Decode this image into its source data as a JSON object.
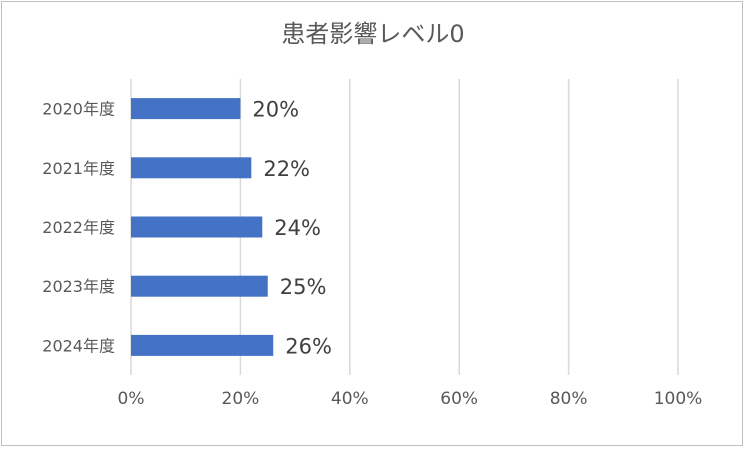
{
  "chart_data": {
    "type": "bar",
    "orientation": "horizontal",
    "title": "患者影響レベル0",
    "categories": [
      "2020年度",
      "2021年度",
      "2022年度",
      "2023年度",
      "2024年度"
    ],
    "values": [
      20,
      22,
      24,
      25,
      26
    ],
    "data_labels": [
      "20%",
      "22%",
      "24%",
      "25%",
      "26%"
    ],
    "x_ticks": [
      "0%",
      "20%",
      "40%",
      "60%",
      "80%",
      "100%"
    ],
    "xlim": [
      0,
      100
    ],
    "grid": true,
    "legend": "none",
    "bar_color": "#4472c4",
    "xlabel": "",
    "ylabel": ""
  }
}
